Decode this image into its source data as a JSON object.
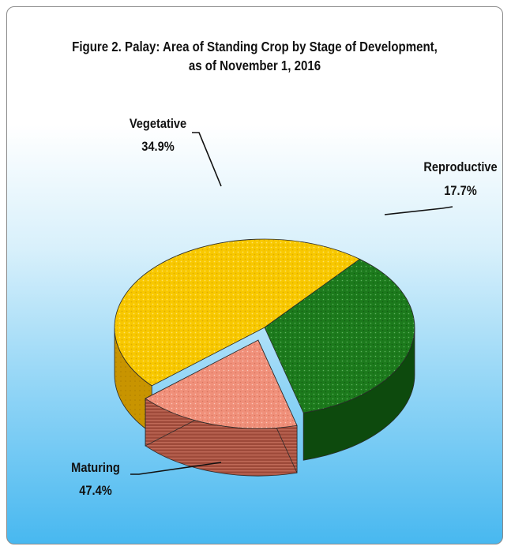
{
  "chart_data": {
    "type": "pie",
    "title_line1": "Figure 2. Palay: Area of Standing Crop by Stage of Development,",
    "title_line2": "as of  November 1, 2016",
    "slices": [
      {
        "name": "Reproductive",
        "label": "17.7%",
        "value": 17.7,
        "top_color": "#f0907a",
        "side_color": "#9e4a3a",
        "exploded": true
      },
      {
        "name": "Maturing",
        "label": "47.4%",
        "value": 47.4,
        "top_color": "#f8c800",
        "side_color": "#c89400",
        "exploded": false
      },
      {
        "name": "Vegetative",
        "label": "34.9%",
        "value": 34.9,
        "top_color": "#1c7a1c",
        "side_color": "#0d4a0d",
        "exploded": false
      }
    ],
    "legend": "none",
    "style": "3d-exploded"
  }
}
